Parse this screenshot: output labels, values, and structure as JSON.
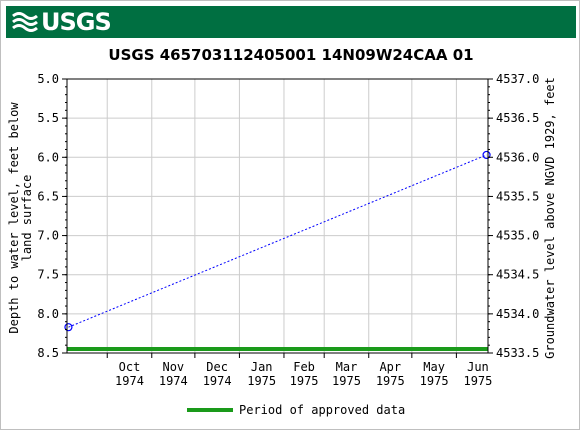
{
  "header": {
    "logo_text": "USGS"
  },
  "chart_data": {
    "type": "line",
    "title": "USGS 465703112405001 14N09W24CAA 01",
    "ylabel_left": "Depth to water level, feet below land surface",
    "ylabel_right": "Groundwater level above NGVD 1929, feet",
    "left_ticks": [
      "5.0",
      "5.5",
      "6.0",
      "6.5",
      "7.0",
      "7.5",
      "8.0",
      "8.5"
    ],
    "right_ticks": [
      "4537.0",
      "4536.5",
      "4536.0",
      "4535.5",
      "4535.0",
      "4534.5",
      "4534.0",
      "4533.5"
    ],
    "ylim_left": [
      8.5,
      5.0
    ],
    "ylim_right": [
      4533.5,
      4537.0
    ],
    "xlim": [
      "1974-09-03",
      "1975-06-23"
    ],
    "x_ticks": [
      {
        "date": "1974-10-01",
        "month": "Oct",
        "year": "1974"
      },
      {
        "date": "1974-11-01",
        "month": "Nov",
        "year": "1974"
      },
      {
        "date": "1974-12-01",
        "month": "Dec",
        "year": "1974"
      },
      {
        "date": "1975-01-01",
        "month": "Jan",
        "year": "1975"
      },
      {
        "date": "1975-02-01",
        "month": "Feb",
        "year": "1975"
      },
      {
        "date": "1975-03-01",
        "month": "Mar",
        "year": "1975"
      },
      {
        "date": "1975-04-01",
        "month": "Apr",
        "year": "1975"
      },
      {
        "date": "1975-05-01",
        "month": "May",
        "year": "1975"
      },
      {
        "date": "1975-06-01",
        "month": "Jun",
        "year": "1975"
      }
    ],
    "series": [
      {
        "points": [
          {
            "date": "1974-09-04",
            "depth": 8.17
          },
          {
            "date": "1975-06-22",
            "depth": 5.97
          }
        ],
        "color": "#0000ff",
        "line_style": "dotted"
      }
    ],
    "approved_period": {
      "start": "1974-09-03",
      "end": "1975-06-23",
      "color": "#1a9a1a"
    },
    "legend": {
      "label": "Period of approved data",
      "position": "bottom-center"
    },
    "grid": true
  }
}
